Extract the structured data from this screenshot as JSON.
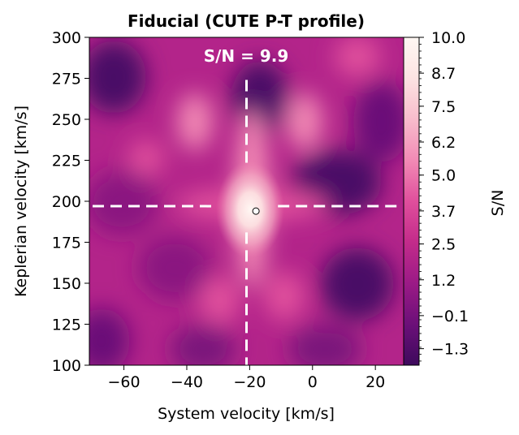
{
  "chart_data": {
    "type": "heatmap",
    "title": "Fiducial (CUTE P-T profile)",
    "annotation": "S/N = 9.9",
    "xlabel": "System velocity [km/s]",
    "ylabel": "Keplerian velocity [km/s]",
    "xlim": [
      -71,
      29
    ],
    "ylim": [
      100,
      300
    ],
    "x_ticks": [
      -60,
      -40,
      -20,
      0,
      20
    ],
    "x_tick_labels": [
      "−60",
      "−40",
      "−20",
      "0",
      "20"
    ],
    "y_ticks": [
      100,
      125,
      150,
      175,
      200,
      225,
      250,
      275,
      300
    ],
    "y_tick_labels": [
      "100",
      "125",
      "150",
      "175",
      "200",
      "225",
      "250",
      "275",
      "300"
    ],
    "colorbar": {
      "label": "S/N",
      "range": [
        -1.9,
        10.0
      ],
      "ticks": [
        10.0,
        8.7,
        7.5,
        6.2,
        5.0,
        3.7,
        2.5,
        1.2,
        -0.1,
        -1.3
      ],
      "tick_labels": [
        "10.0",
        "8.7",
        "7.5",
        "6.2",
        "5.0",
        "3.7",
        "2.5",
        "1.2",
        "−0.1",
        "−1.3"
      ],
      "colormap": "RdPu_r",
      "colors": [
        "#3d0a5c",
        "#6a0f78",
        "#9b1a86",
        "#c42c8b",
        "#e04f9c",
        "#f188b4",
        "#f8bccc",
        "#fde4e3",
        "#fff7f3"
      ]
    },
    "peak": {
      "x": -18,
      "y": 194,
      "value": 9.9
    },
    "crosshair": {
      "x": -21,
      "y": 197,
      "color": "#ffffff"
    },
    "grid": false
  }
}
